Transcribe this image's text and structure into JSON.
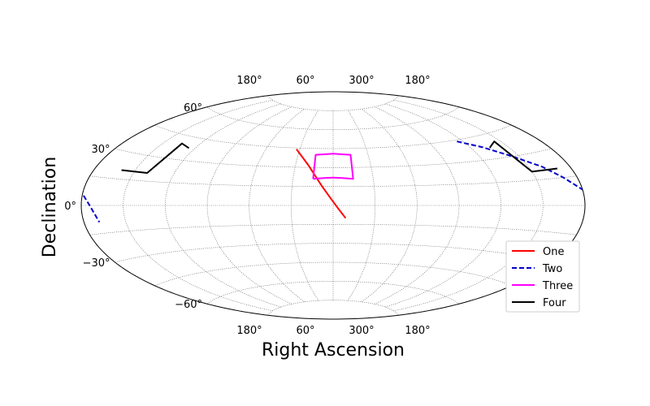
{
  "chart_data": {
    "type": "line",
    "projection": "aitoff",
    "xlabel": "Right Ascension",
    "ylabel": "Declination",
    "grid": true,
    "legend_position": "lower-right",
    "x_tick_labels_top": [
      "180°",
      "60°",
      "300°",
      "180°"
    ],
    "x_tick_labels_bottom": [
      "180°",
      "60°",
      "300°",
      "180°"
    ],
    "y_ticks": [
      {
        "value": 60,
        "label": "60°"
      },
      {
        "value": 30,
        "label": "30°"
      },
      {
        "value": 0,
        "label": "0°"
      },
      {
        "value": -30,
        "label": "−30°"
      },
      {
        "value": -60,
        "label": "−60°"
      }
    ],
    "series": [
      {
        "name": "One",
        "color": "#ff0000",
        "dash": "solid",
        "segments": [
          [
            [
              -33,
              44
            ],
            [
              -27,
              39
            ],
            [
              -20,
              32
            ],
            [
              -14,
              24
            ],
            [
              -8,
              15
            ],
            [
              -2,
              6
            ],
            [
              4,
              -3
            ],
            [
              9,
              -10
            ]
          ]
        ]
      },
      {
        "name": "Two",
        "color": "#0000cc",
        "dash": "dashed",
        "segments": [
          [
            [
              -179,
              5
            ],
            [
              -174,
              0
            ],
            [
              -169,
              -9
            ]
          ],
          [
            [
              115,
              44
            ],
            [
              130,
              38
            ],
            [
              145,
              30
            ],
            [
              160,
              22
            ],
            [
              170,
              15
            ],
            [
              180,
              8
            ]
          ]
        ]
      },
      {
        "name": "Three",
        "color": "#ff00ff",
        "dash": "solid",
        "segments": [
          [
            [
              -15,
              21
            ],
            [
              -15,
              40
            ],
            [
              -7,
              40.5
            ],
            [
              0,
              41
            ],
            [
              7,
              40.5
            ],
            [
              15,
              40
            ],
            [
              15,
              21
            ],
            [
              7,
              21.7
            ],
            [
              0,
              22
            ],
            [
              -7,
              21.7
            ],
            [
              -15,
              21
            ]
          ]
        ]
      },
      {
        "name": "Four",
        "color": "#000000",
        "dash": "solid",
        "segments": [
          [
            [
              -160,
              20
            ],
            [
              -140,
              20
            ],
            [
              -135,
              40
            ],
            [
              -125,
              38
            ]
          ],
          [
            [
              135,
              37
            ],
            [
              145,
              40
            ],
            [
              150,
              20
            ],
            [
              170,
              20
            ]
          ]
        ]
      }
    ]
  }
}
